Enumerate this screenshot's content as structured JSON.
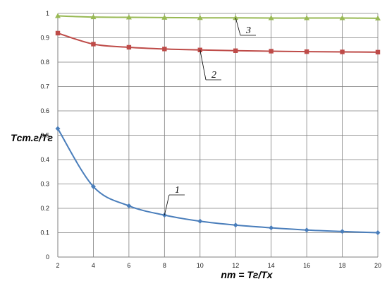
{
  "chart_data": {
    "type": "line",
    "xlabel": "nт = Tг/Tх",
    "ylabel": "Tст.г/Tг",
    "xlim": [
      2,
      20
    ],
    "ylim": [
      0,
      1
    ],
    "x_ticks": [
      "2",
      "4",
      "6",
      "8",
      "10",
      "12",
      "14",
      "16",
      "18",
      "20"
    ],
    "y_ticks": [
      "0",
      "0.1",
      "0.2",
      "0.3",
      "0.4",
      "0.5",
      "0.6",
      "0.7",
      "0.8",
      "0.9",
      "1"
    ],
    "grid": true,
    "series": [
      {
        "label": "1",
        "color": "#4a7ebb",
        "marker": "diamond",
        "x": [
          2,
          4,
          6,
          8,
          10,
          12,
          14,
          16,
          18,
          20
        ],
        "y": [
          0.527,
          0.289,
          0.21,
          0.172,
          0.147,
          0.131,
          0.12,
          0.111,
          0.105,
          0.1
        ]
      },
      {
        "label": "2",
        "color": "#be4b48",
        "marker": "square",
        "x": [
          2,
          4,
          6,
          8,
          10,
          12,
          14,
          16,
          18,
          20
        ],
        "y": [
          0.919,
          0.874,
          0.861,
          0.854,
          0.85,
          0.847,
          0.845,
          0.843,
          0.842,
          0.841
        ]
      },
      {
        "label": "3",
        "color": "#98b954",
        "marker": "triangle",
        "x": [
          2,
          4,
          6,
          8,
          10,
          12,
          14,
          16,
          18,
          20
        ],
        "y": [
          0.99,
          0.985,
          0.984,
          0.983,
          0.982,
          0.982,
          0.981,
          0.981,
          0.981,
          0.98
        ]
      }
    ]
  }
}
